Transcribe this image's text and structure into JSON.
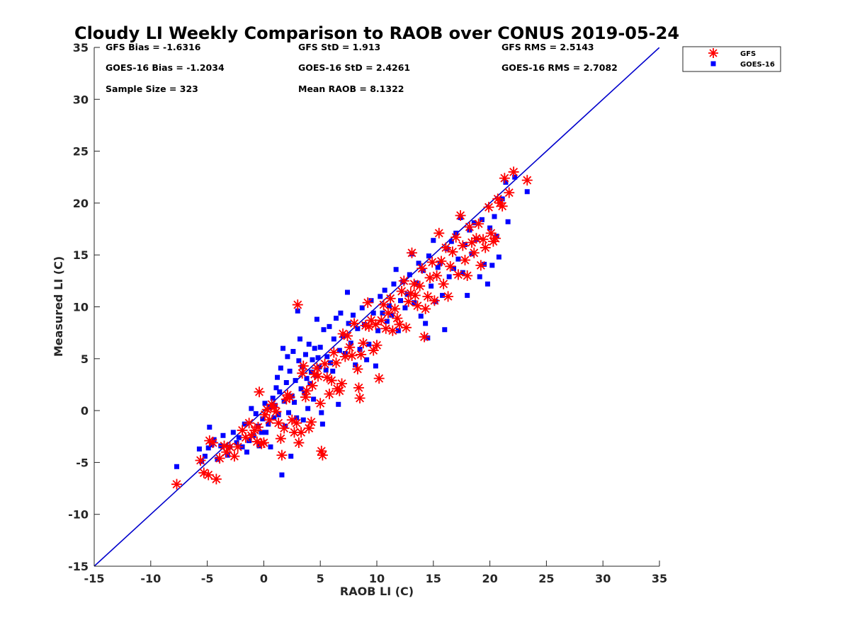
{
  "chart_data": {
    "type": "scatter",
    "title": "Cloudy LI Weekly Comparison to RAOB over CONUS 2019-05-24",
    "xlabel": "RAOB LI (C)",
    "ylabel": "Measured LI (C)",
    "xlim": [
      -15,
      35
    ],
    "ylim": [
      -15,
      35
    ],
    "xticks": [
      "-15",
      "-10",
      "-5",
      "0",
      "5",
      "10",
      "15",
      "20",
      "25",
      "30",
      "35"
    ],
    "yticks": [
      "-15",
      "-10",
      "-5",
      "0",
      "5",
      "10",
      "15",
      "20",
      "25",
      "30",
      "35"
    ],
    "grid": false,
    "legend_position": "top-right (outside plot)",
    "reference_line": {
      "type": "1:1",
      "color": "#0000cc"
    },
    "stats": [
      [
        "GFS Bias = -1.6316",
        "GFS StD = 1.913",
        "GFS RMS = 2.5143"
      ],
      [
        "GOES-16 Bias = -1.2034",
        "GOES-16 StD = 2.4261",
        "GOES-16 RMS = 2.7082"
      ],
      [
        "Sample Size = 323",
        "Mean RAOB = 8.1322",
        ""
      ]
    ],
    "series": [
      {
        "name": "GFS",
        "marker": "asterisk",
        "color": "#ff0000",
        "points": [
          [
            -7.7,
            -7.1
          ],
          [
            -5.6,
            -4.8
          ],
          [
            -5.3,
            -6
          ],
          [
            -4.9,
            -6.2
          ],
          [
            -4.8,
            -2.9
          ],
          [
            -4.5,
            -3.1
          ],
          [
            -4.2,
            -6.6
          ],
          [
            -3.9,
            -4.6
          ],
          [
            -3.5,
            -3.4
          ],
          [
            -3.3,
            -4
          ],
          [
            -3,
            -3.5
          ],
          [
            -2.6,
            -4.4
          ],
          [
            -2.3,
            -3.5
          ],
          [
            -1.9,
            -1.9
          ],
          [
            -1.6,
            -2.6
          ],
          [
            -1.3,
            -1.2
          ],
          [
            -1.1,
            -2.4
          ],
          [
            -0.8,
            -1.9
          ],
          [
            -0.6,
            -3
          ],
          [
            -0.5,
            -1.6
          ],
          [
            -0.4,
            1.8
          ],
          [
            -0.2,
            -3.2
          ],
          [
            0,
            -3.1
          ],
          [
            0.1,
            -0.4
          ],
          [
            0.3,
            0.1
          ],
          [
            0.5,
            -0.9
          ],
          [
            0.7,
            0.6
          ],
          [
            0.9,
            0.3
          ],
          [
            1.1,
            -0.1
          ],
          [
            1.3,
            -1.2
          ],
          [
            1.5,
            -2.7
          ],
          [
            1.6,
            -4.3
          ],
          [
            1.8,
            -1.7
          ],
          [
            2,
            1.1
          ],
          [
            2.1,
            1.5
          ],
          [
            2.3,
            1.3
          ],
          [
            2.5,
            -0.9
          ],
          [
            2.7,
            -2.1
          ],
          [
            2.9,
            -1.2
          ],
          [
            3,
            10.2
          ],
          [
            3.1,
            -3.1
          ],
          [
            3.3,
            -2.1
          ],
          [
            3.4,
            3.6
          ],
          [
            3.5,
            4.3
          ],
          [
            3.7,
            1.3
          ],
          [
            3.8,
            1.9
          ],
          [
            4,
            -1.7
          ],
          [
            4.2,
            -1.1
          ],
          [
            4.3,
            2.4
          ],
          [
            4.5,
            3.5
          ],
          [
            4.7,
            4.1
          ],
          [
            4.8,
            3.3
          ],
          [
            5,
            0.7
          ],
          [
            5.1,
            -3.9
          ],
          [
            5.2,
            -4.3
          ],
          [
            5.4,
            4.5
          ],
          [
            5.6,
            3.2
          ],
          [
            5.8,
            1.6
          ],
          [
            6,
            2.9
          ],
          [
            6.2,
            5.6
          ],
          [
            6.4,
            4.6
          ],
          [
            6.5,
            2.1
          ],
          [
            6.7,
            1.9
          ],
          [
            6.9,
            2.6
          ],
          [
            7,
            7.4
          ],
          [
            7.2,
            5.2
          ],
          [
            7.4,
            7.2
          ],
          [
            7.6,
            6.1
          ],
          [
            7.8,
            5.3
          ],
          [
            8,
            8.4
          ],
          [
            8.3,
            4
          ],
          [
            8.4,
            2.2
          ],
          [
            8.5,
            1.2
          ],
          [
            8.6,
            5.4
          ],
          [
            8.8,
            6.5
          ],
          [
            9,
            8.2
          ],
          [
            9.2,
            10.4
          ],
          [
            9.3,
            8.1
          ],
          [
            9.5,
            8.7
          ],
          [
            9.7,
            5.8
          ],
          [
            9.9,
            8.3
          ],
          [
            10,
            6.3
          ],
          [
            10.2,
            3.1
          ],
          [
            10.4,
            8.7
          ],
          [
            10.6,
            10.2
          ],
          [
            10.8,
            7.9
          ],
          [
            11,
            9.4
          ],
          [
            11.2,
            10.8
          ],
          [
            11.4,
            7.7
          ],
          [
            11.6,
            9.8
          ],
          [
            11.8,
            8.9
          ],
          [
            12,
            8.3
          ],
          [
            12.2,
            11.5
          ],
          [
            12.4,
            12.5
          ],
          [
            12.6,
            8
          ],
          [
            12.8,
            10.5
          ],
          [
            13,
            11.3
          ],
          [
            13.1,
            15.2
          ],
          [
            13.3,
            12.2
          ],
          [
            13.4,
            11.1
          ],
          [
            13.6,
            10.1
          ],
          [
            13.8,
            12
          ],
          [
            14,
            13.7
          ],
          [
            14.2,
            7.1
          ],
          [
            14.3,
            9.8
          ],
          [
            14.5,
            11
          ],
          [
            14.7,
            12.8
          ],
          [
            14.9,
            14.3
          ],
          [
            15.1,
            10.6
          ],
          [
            15.3,
            13
          ],
          [
            15.5,
            17.1
          ],
          [
            15.7,
            14.4
          ],
          [
            15.9,
            12.2
          ],
          [
            16.1,
            15.7
          ],
          [
            16.3,
            11
          ],
          [
            16.5,
            13.9
          ],
          [
            16.7,
            15.3
          ],
          [
            17,
            16.7
          ],
          [
            17.2,
            13.1
          ],
          [
            17.4,
            18.8
          ],
          [
            17.6,
            15.9
          ],
          [
            17.8,
            14.5
          ],
          [
            18,
            13
          ],
          [
            18.2,
            17.7
          ],
          [
            18.4,
            16.2
          ],
          [
            18.6,
            15.2
          ],
          [
            18.8,
            16.6
          ],
          [
            19,
            18
          ],
          [
            19.2,
            14
          ],
          [
            19.4,
            16.5
          ],
          [
            19.6,
            15.7
          ],
          [
            19.9,
            19.6
          ],
          [
            20.1,
            17.1
          ],
          [
            20.3,
            16.3
          ],
          [
            20.5,
            16.6
          ],
          [
            20.7,
            20.4
          ],
          [
            20.9,
            20
          ],
          [
            21.1,
            19.7
          ],
          [
            21.3,
            22.4
          ],
          [
            21.7,
            21
          ],
          [
            22.1,
            23
          ],
          [
            23.3,
            22.2
          ]
        ]
      },
      {
        "name": "GOES-16",
        "marker": "square",
        "color": "#0000ff",
        "points": [
          [
            -7.7,
            -5.4
          ],
          [
            -5.7,
            -3.7
          ],
          [
            -5.5,
            -4.9
          ],
          [
            -5.2,
            -4.4
          ],
          [
            -4.9,
            -3.6
          ],
          [
            -4.8,
            -1.6
          ],
          [
            -4.6,
            -3.3
          ],
          [
            -4.4,
            -2.8
          ],
          [
            -4.1,
            -4.7
          ],
          [
            -3.8,
            -3.4
          ],
          [
            -3.6,
            -2.4
          ],
          [
            -3.2,
            -4.3
          ],
          [
            -3,
            -3.5
          ],
          [
            -2.7,
            -2.1
          ],
          [
            -2.4,
            -3.1
          ],
          [
            -2.2,
            -2.6
          ],
          [
            -1.9,
            -3.5
          ],
          [
            -1.7,
            -1.3
          ],
          [
            -1.5,
            -4
          ],
          [
            -1.3,
            -2.9
          ],
          [
            -1.1,
            0.2
          ],
          [
            -0.9,
            -2.4
          ],
          [
            -0.7,
            -0.3
          ],
          [
            -0.5,
            -1.5
          ],
          [
            -0.4,
            -3.4
          ],
          [
            -0.2,
            -2.1
          ],
          [
            -0.1,
            -0.8
          ],
          [
            0.1,
            0.7
          ],
          [
            0.2,
            -2.1
          ],
          [
            0.4,
            -1.3
          ],
          [
            0.5,
            0.3
          ],
          [
            0.6,
            -3.5
          ],
          [
            0.8,
            1.2
          ],
          [
            0.9,
            -0.7
          ],
          [
            1,
            0.5
          ],
          [
            1.1,
            2.2
          ],
          [
            1.2,
            3.2
          ],
          [
            1.3,
            -0.4
          ],
          [
            1.4,
            1.8
          ],
          [
            1.5,
            4.1
          ],
          [
            1.6,
            -6.2
          ],
          [
            1.7,
            6
          ],
          [
            1.8,
            0.9
          ],
          [
            1.9,
            -1.5
          ],
          [
            2,
            2.7
          ],
          [
            2.1,
            5.2
          ],
          [
            2.2,
            -0.2
          ],
          [
            2.3,
            3.8
          ],
          [
            2.4,
            -4.4
          ],
          [
            2.5,
            1.4
          ],
          [
            2.6,
            5.7
          ],
          [
            2.7,
            0.8
          ],
          [
            2.8,
            2.9
          ],
          [
            2.9,
            -0.7
          ],
          [
            3,
            9.6
          ],
          [
            3.1,
            4.8
          ],
          [
            3.2,
            6.9
          ],
          [
            3.3,
            2.1
          ],
          [
            3.4,
            4.2
          ],
          [
            3.5,
            -0.9
          ],
          [
            3.6,
            1.7
          ],
          [
            3.7,
            5.4
          ],
          [
            3.8,
            3.1
          ],
          [
            3.9,
            0.2
          ],
          [
            4,
            6.4
          ],
          [
            4.1,
            2.6
          ],
          [
            4.2,
            3.7
          ],
          [
            4.3,
            4.9
          ],
          [
            4.4,
            1.1
          ],
          [
            4.5,
            6
          ],
          [
            4.6,
            3.4
          ],
          [
            4.7,
            8.8
          ],
          [
            4.8,
            5.1
          ],
          [
            4.9,
            4.2
          ],
          [
            5,
            6.1
          ],
          [
            5.1,
            -0.2
          ],
          [
            5.2,
            -1.3
          ],
          [
            5.3,
            7.8
          ],
          [
            5.5,
            3.9
          ],
          [
            5.6,
            5.2
          ],
          [
            5.8,
            8.1
          ],
          [
            5.9,
            4.6
          ],
          [
            6.1,
            3.8
          ],
          [
            6.2,
            6.9
          ],
          [
            6.4,
            8.9
          ],
          [
            6.6,
            0.6
          ],
          [
            6.7,
            5.8
          ],
          [
            6.8,
            9.4
          ],
          [
            7,
            7.2
          ],
          [
            7.2,
            5.5
          ],
          [
            7.4,
            11.4
          ],
          [
            7.5,
            8.4
          ],
          [
            7.7,
            6.5
          ],
          [
            7.9,
            9.2
          ],
          [
            8.1,
            4.4
          ],
          [
            8.3,
            7.9
          ],
          [
            8.5,
            5.9
          ],
          [
            8.7,
            9.9
          ],
          [
            8.9,
            8.3
          ],
          [
            9.1,
            4.9
          ],
          [
            9.3,
            6.4
          ],
          [
            9.5,
            10.6
          ],
          [
            9.7,
            9.4
          ],
          [
            9.9,
            4.3
          ],
          [
            10.1,
            7.7
          ],
          [
            10.3,
            11
          ],
          [
            10.5,
            9.4
          ],
          [
            10.7,
            11.6
          ],
          [
            10.9,
            8.6
          ],
          [
            11.1,
            10.1
          ],
          [
            11.3,
            9.2
          ],
          [
            11.5,
            12.2
          ],
          [
            11.7,
            13.6
          ],
          [
            11.9,
            7.7
          ],
          [
            12.1,
            10.6
          ],
          [
            12.3,
            12.4
          ],
          [
            12.5,
            9.9
          ],
          [
            12.7,
            11.2
          ],
          [
            12.9,
            13.1
          ],
          [
            13.1,
            15.1
          ],
          [
            13.3,
            10.4
          ],
          [
            13.5,
            12.3
          ],
          [
            13.7,
            14.2
          ],
          [
            13.9,
            9.1
          ],
          [
            14.1,
            13.5
          ],
          [
            14.3,
            8.4
          ],
          [
            14.5,
            7
          ],
          [
            14.6,
            14.9
          ],
          [
            14.8,
            12
          ],
          [
            15,
            16.4
          ],
          [
            15.2,
            10.5
          ],
          [
            15.4,
            13.8
          ],
          [
            15.6,
            14.2
          ],
          [
            15.8,
            11.1
          ],
          [
            16,
            7.8
          ],
          [
            16.2,
            15.6
          ],
          [
            16.4,
            12.9
          ],
          [
            16.6,
            16.3
          ],
          [
            16.8,
            13.7
          ],
          [
            17,
            17.1
          ],
          [
            17.2,
            14.6
          ],
          [
            17.4,
            18.6
          ],
          [
            17.6,
            13.3
          ],
          [
            17.8,
            16
          ],
          [
            18,
            11.1
          ],
          [
            18.2,
            17.4
          ],
          [
            18.4,
            15.1
          ],
          [
            18.6,
            18.1
          ],
          [
            18.8,
            16.5
          ],
          [
            19.1,
            12.9
          ],
          [
            19.3,
            18.4
          ],
          [
            19.5,
            14.1
          ],
          [
            19.8,
            12.2
          ],
          [
            20,
            17.6
          ],
          [
            20.2,
            14
          ],
          [
            20.4,
            18.7
          ],
          [
            20.6,
            16.8
          ],
          [
            20.8,
            14.8
          ],
          [
            21.1,
            20.4
          ],
          [
            21.4,
            22
          ],
          [
            21.6,
            18.2
          ],
          [
            22.2,
            22.5
          ],
          [
            23.3,
            21.1
          ]
        ]
      }
    ]
  }
}
